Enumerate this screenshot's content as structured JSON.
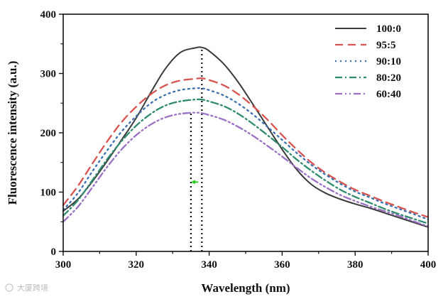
{
  "watermark": "大厦跨境",
  "chart_data": {
    "type": "line",
    "xlabel": "Wavelength (nm)",
    "ylabel": "Fluorescence intensity (a.u.)",
    "xlim": [
      300,
      400
    ],
    "ylim": [
      0,
      400
    ],
    "xticks": [
      "300",
      "320",
      "340",
      "360",
      "380",
      "400"
    ],
    "yticks": [
      "0",
      "100",
      "200",
      "300",
      "400"
    ],
    "legend_position": "top-right",
    "x": [
      300,
      304,
      308,
      312,
      316,
      320,
      324,
      328,
      332,
      336,
      338,
      340,
      344,
      348,
      352,
      356,
      360,
      364,
      368,
      372,
      376,
      380,
      384,
      388,
      392,
      396,
      400
    ],
    "series": [
      {
        "name": "100:0",
        "color": "#3a3a3a",
        "dash": "solid",
        "values": [
          68,
          88,
          118,
          152,
          188,
          225,
          268,
          308,
          335,
          343,
          344,
          338,
          316,
          285,
          248,
          210,
          172,
          138,
          113,
          98,
          88,
          80,
          73,
          65,
          57,
          49,
          41
        ]
      },
      {
        "name": "95:5",
        "color": "#d9534f",
        "dash": "dashed",
        "values": [
          78,
          110,
          148,
          185,
          218,
          244,
          265,
          280,
          288,
          291,
          292,
          289,
          280,
          265,
          245,
          222,
          196,
          172,
          150,
          132,
          117,
          104,
          94,
          84,
          75,
          66,
          58
        ]
      },
      {
        "name": "90:10",
        "color": "#3a6fb0",
        "dash": "dotted",
        "values": [
          70,
          98,
          135,
          170,
          202,
          228,
          250,
          264,
          272,
          275,
          275,
          272,
          263,
          249,
          231,
          210,
          188,
          166,
          146,
          129,
          114,
          101,
          91,
          81,
          72,
          63,
          54
        ]
      },
      {
        "name": "80:20",
        "color": "#2e8b6e",
        "dash": "dashdot",
        "values": [
          60,
          86,
          120,
          155,
          186,
          212,
          232,
          246,
          253,
          256,
          256,
          253,
          245,
          232,
          215,
          196,
          176,
          155,
          136,
          119,
          104,
          92,
          82,
          72,
          63,
          55,
          47
        ]
      },
      {
        "name": "60:40",
        "color": "#9b6fc4",
        "dash": "dashdotdot",
        "values": [
          50,
          75,
          108,
          142,
          172,
          196,
          214,
          226,
          232,
          234,
          233,
          230,
          222,
          210,
          195,
          178,
          160,
          141,
          123,
          108,
          95,
          85,
          76,
          68,
          60,
          51,
          42
        ]
      }
    ],
    "annotations": [
      {
        "type": "vline",
        "x": 335,
        "y_to": 234
      },
      {
        "type": "vline",
        "x": 338,
        "y_to": 344
      },
      {
        "type": "arrow",
        "x_from": 337,
        "x_to": 335,
        "y": 117,
        "color": "#22cc22"
      }
    ]
  }
}
